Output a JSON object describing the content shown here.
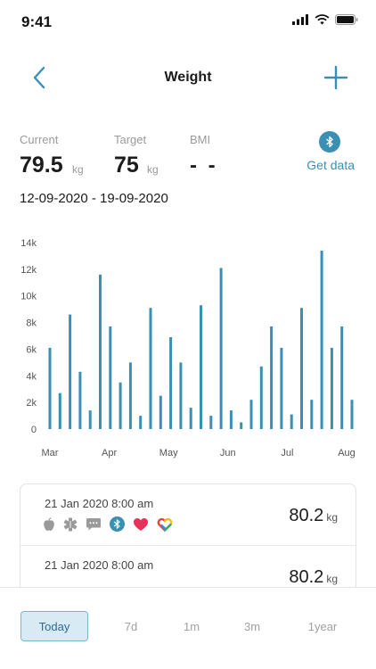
{
  "status_bar": {
    "time": "9:41"
  },
  "nav": {
    "title": "Weight"
  },
  "stats": {
    "current_label": "Current",
    "current_value": "79.5",
    "current_unit": "kg",
    "target_label": "Target",
    "target_value": "75",
    "target_unit": "kg",
    "bmi_label": "BMI",
    "bmi_value": "- -",
    "get_data_label": "Get data"
  },
  "date_range": "12-09-2020 - 19-09-2020",
  "chart_data": {
    "type": "bar",
    "title": "",
    "xlabel": "",
    "ylabel": "",
    "ylim": [
      0,
      14000
    ],
    "y_ticks": [
      "0",
      "2k",
      "4k",
      "6k",
      "8k",
      "10k",
      "12k",
      "14k"
    ],
    "x_ticks": [
      "Mar",
      "Apr",
      "May",
      "Jun",
      "Jul",
      "Aug"
    ],
    "values": [
      6100,
      2700,
      8600,
      4300,
      1400,
      11600,
      7700,
      3500,
      5000,
      1000,
      9100,
      2500,
      6900,
      5000,
      1600,
      9300,
      1000,
      12100,
      1400,
      500,
      2200,
      4700,
      7700,
      6100,
      1100,
      9100,
      2200,
      13400,
      6100,
      7700,
      2200
    ],
    "bar_color": "#3a8fb4"
  },
  "entries": [
    {
      "date": "21 Jan 2020 8:00 am",
      "value": "80.2",
      "unit": "kg",
      "icons": [
        "apple-icon",
        "medical-star-icon",
        "chat-bubble-icon",
        "bluetooth-icon",
        "heart-icon",
        "google-fit-heart-icon"
      ]
    },
    {
      "date": "21 Jan 2020 8:00 am",
      "value": "80.2",
      "unit": "kg"
    }
  ],
  "tabs": [
    {
      "label": "Today",
      "active": true
    },
    {
      "label": "7d"
    },
    {
      "label": "1m"
    },
    {
      "label": "3m"
    },
    {
      "label": "1year"
    }
  ],
  "colors": {
    "accent": "#3a8fb4",
    "active_tab_bg": "#d8eaf3"
  }
}
